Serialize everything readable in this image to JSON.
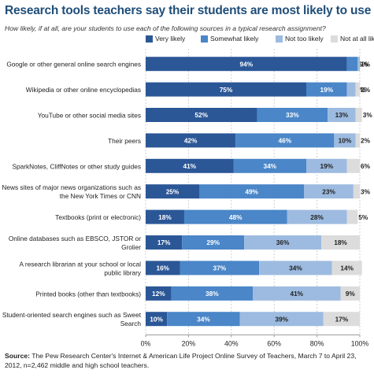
{
  "chart_data": {
    "type": "bar",
    "stacked": true,
    "orientation": "horizontal",
    "title": "Research tools teachers say their students are most likely to use",
    "subtitle": "How likely, if at all, are your students to use each of the following sources in a typical research assignment?",
    "categories": [
      "Google or other general online search engines",
      "Wikipedia or other online encyclopedias",
      "YouTube or other social media sites",
      "Their peers",
      "SparkNotes, CliffNotes or other study guides",
      "News sites of major news organizations such as the New York Times or CNN",
      "Textbooks (print or electronic)",
      "Online databases such as EBSCO, JSTOR or Grolier",
      "A research librarian at your school or local public library",
      "Printed books (other than textbooks)",
      "Student-oriented search engines such as Sweet Search"
    ],
    "category_lines": [
      [
        "Google or other general online search engines"
      ],
      [
        "Wikipedia or other online encyclopedias"
      ],
      [
        "YouTube or other social media sites"
      ],
      [
        "Their peers"
      ],
      [
        "SparkNotes, CliffNotes or other study guides"
      ],
      [
        "News sites of major news organizations such as",
        "the New York Times or CNN"
      ],
      [
        "Textbooks (print or electronic)"
      ],
      [
        "Online databases such as EBSCO, JSTOR or",
        "Grolier"
      ],
      [
        "A research librarian at your school or local",
        "public library"
      ],
      [
        "Printed books (other than textbooks)"
      ],
      [
        "Student-oriented search engines such as Sweet",
        "Search"
      ]
    ],
    "series": [
      {
        "name": "Very likely",
        "color": "#2b5797",
        "values": [
          94,
          75,
          52,
          42,
          41,
          25,
          18,
          17,
          16,
          12,
          10
        ]
      },
      {
        "name": "Somewhat likely",
        "color": "#4a86c8",
        "values": [
          5,
          19,
          33,
          46,
          34,
          49,
          48,
          29,
          37,
          38,
          34
        ]
      },
      {
        "name": "Not too likely",
        "color": "#9dbbe0",
        "values": [
          1,
          4,
          13,
          10,
          19,
          23,
          28,
          36,
          34,
          41,
          39
        ]
      },
      {
        "name": "Not at all likely",
        "color": "#dcdcdc",
        "values": [
          0,
          2,
          3,
          2,
          6,
          3,
          5,
          18,
          14,
          9,
          17
        ]
      }
    ],
    "data_labels": [
      [
        "94%",
        "5%",
        "1%",
        ""
      ],
      [
        "75%",
        "19%",
        "4%",
        "2%"
      ],
      [
        "52%",
        "33%",
        "13%",
        "3%"
      ],
      [
        "42%",
        "46%",
        "10%",
        "2%"
      ],
      [
        "41%",
        "34%",
        "19%",
        "6%"
      ],
      [
        "25%",
        "49%",
        "23%",
        "3%"
      ],
      [
        "18%",
        "48%",
        "28%",
        "5%"
      ],
      [
        "17%",
        "29%",
        "36%",
        "18%"
      ],
      [
        "16%",
        "37%",
        "34%",
        "14%"
      ],
      [
        "12%",
        "38%",
        "41%",
        "9%"
      ],
      [
        "10%",
        "34%",
        "39%",
        "17%"
      ]
    ],
    "xlim": [
      0,
      100
    ],
    "xticks": [
      "0%",
      "20%",
      "40%",
      "60%",
      "80%",
      "100%"
    ],
    "grid": true,
    "legend_position": "top"
  },
  "source": {
    "label": "Source:",
    "text": "The Pew Research Center's Internet & American Life Project Online Survey of Teachers, March 7 to April 23, 2012, n=2,462 middle and high school teachers."
  }
}
